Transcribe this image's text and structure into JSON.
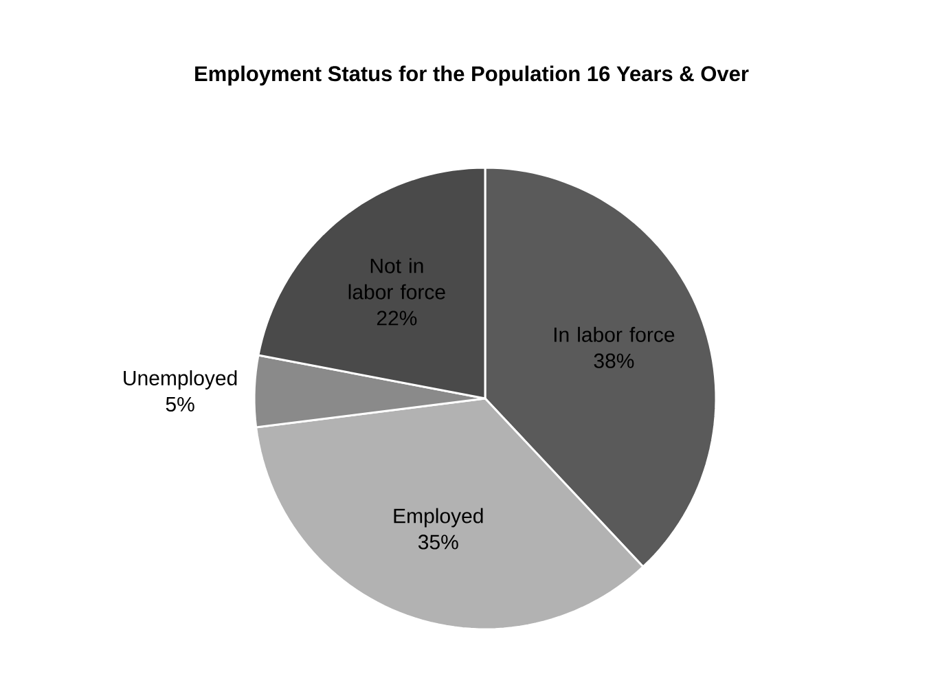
{
  "chart_data": {
    "type": "pie",
    "title": "Employment Status for the Population 16 Years & Over",
    "categories": [
      "In labor force",
      "Employed",
      "Unemployed",
      "Not in labor force"
    ],
    "values": [
      38,
      35,
      5,
      22
    ],
    "value_labels": [
      "38%",
      "35%",
      "5%",
      "22%"
    ],
    "colors": [
      "#5a5a5a",
      "#b2b2b2",
      "#8a8a8a",
      "#4a4a4a"
    ]
  }
}
